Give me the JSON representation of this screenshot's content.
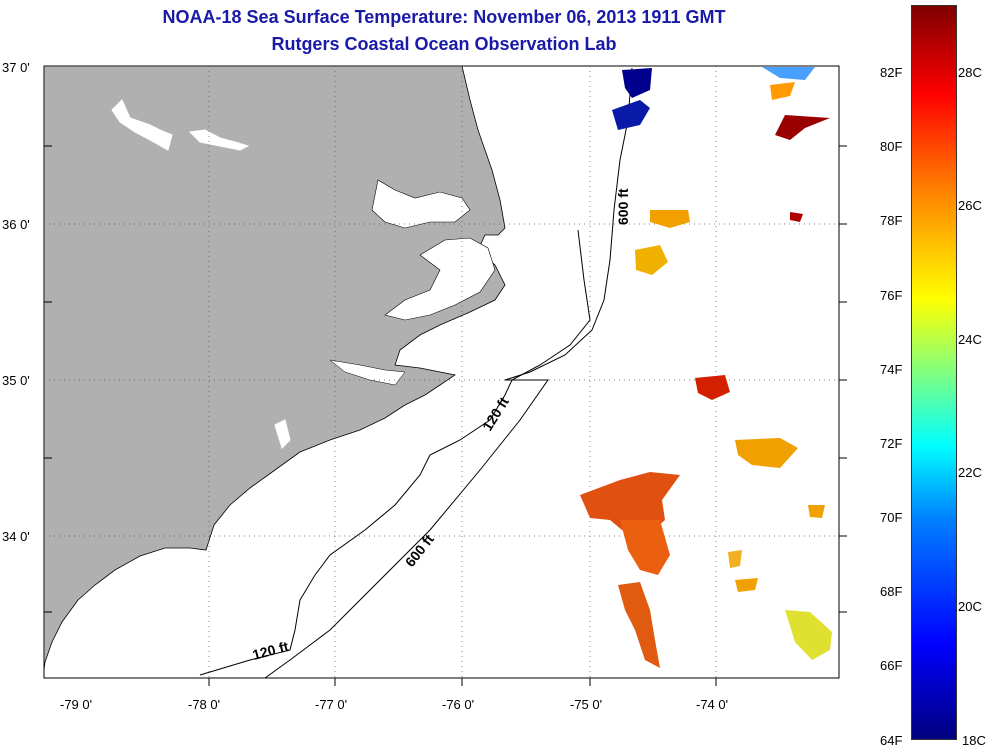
{
  "title": {
    "line1": "NOAA-18 Sea Surface Temperature:  November 06, 2013 1911 GMT",
    "line2": "Rutgers Coastal Ocean Observation Lab"
  },
  "map": {
    "lat_labels": [
      "37 0'",
      "36 0'",
      "35 0'",
      "34 0'"
    ],
    "lon_labels": [
      "-79 0'",
      "-78 0'",
      "-77 0'",
      "-76 0'",
      "-75 0'",
      "-74 0'"
    ],
    "contour_labels": [
      "600 ft",
      "120 ft",
      "600 ft",
      "120 ft"
    ],
    "land_color": "#b0b0b0",
    "ocean_color": "#ffffff"
  },
  "colorbar": {
    "f_labels": [
      "82F",
      "80F",
      "78F",
      "76F",
      "74F",
      "72F",
      "70F",
      "68F",
      "66F",
      "64F"
    ],
    "c_labels": [
      "28C",
      "26C",
      "24C",
      "22C",
      "20C",
      "18C"
    ]
  }
}
